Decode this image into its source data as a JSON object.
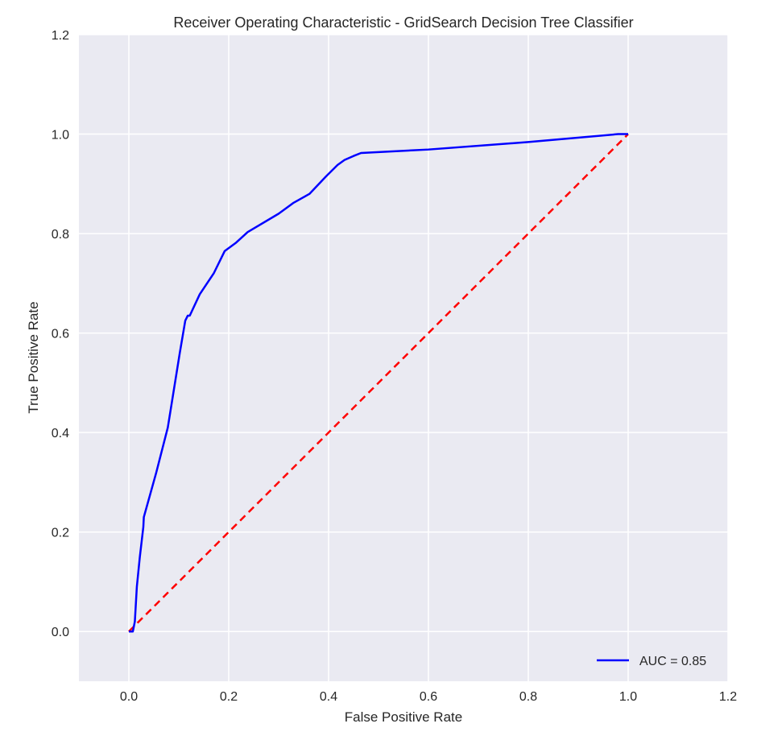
{
  "chart_data": {
    "type": "line",
    "title": "Receiver Operating Characteristic - GridSearch Decision Tree Classifier",
    "xlabel": "False Positive Rate",
    "ylabel": "True Positive Rate",
    "xlim": [
      -0.1,
      1.2
    ],
    "ylim": [
      -0.1,
      1.2
    ],
    "xticks": [
      0.0,
      0.2,
      0.4,
      0.6,
      0.8,
      1.0,
      1.2
    ],
    "xtick_labels": [
      "0.0",
      "0.2",
      "0.4",
      "0.6",
      "0.8",
      "1.0",
      "1.2"
    ],
    "yticks": [
      0.0,
      0.2,
      0.4,
      0.6,
      0.8,
      1.0,
      1.2
    ],
    "ytick_labels": [
      "0.0",
      "0.2",
      "0.4",
      "0.6",
      "0.8",
      "1.0",
      "1.2"
    ],
    "grid": true,
    "legend_position": "lower-right",
    "background": "#EAEAF2",
    "series": [
      {
        "name": "AUC = 0.85",
        "color": "#0000FF",
        "style": "solid",
        "x": [
          0.0,
          0.008,
          0.012,
          0.016,
          0.022,
          0.029,
          0.03,
          0.055,
          0.078,
          0.102,
          0.113,
          0.118,
          0.122,
          0.142,
          0.17,
          0.192,
          0.215,
          0.238,
          0.3,
          0.33,
          0.362,
          0.395,
          0.418,
          0.432,
          0.45,
          0.465,
          0.6,
          0.8,
          0.98,
          1.0
        ],
        "y": [
          0.0,
          0.0,
          0.02,
          0.09,
          0.15,
          0.21,
          0.23,
          0.32,
          0.41,
          0.56,
          0.625,
          0.635,
          0.635,
          0.678,
          0.72,
          0.765,
          0.782,
          0.803,
          0.84,
          0.862,
          0.88,
          0.915,
          0.938,
          0.948,
          0.956,
          0.962,
          0.969,
          0.984,
          1.0,
          1.0
        ]
      }
    ],
    "reference_line": {
      "color": "#FF0000",
      "style": "dashed",
      "x": [
        0.0,
        1.0
      ],
      "y": [
        0.0,
        1.0
      ]
    },
    "legend": {
      "entries": [
        "AUC = 0.85"
      ]
    }
  }
}
